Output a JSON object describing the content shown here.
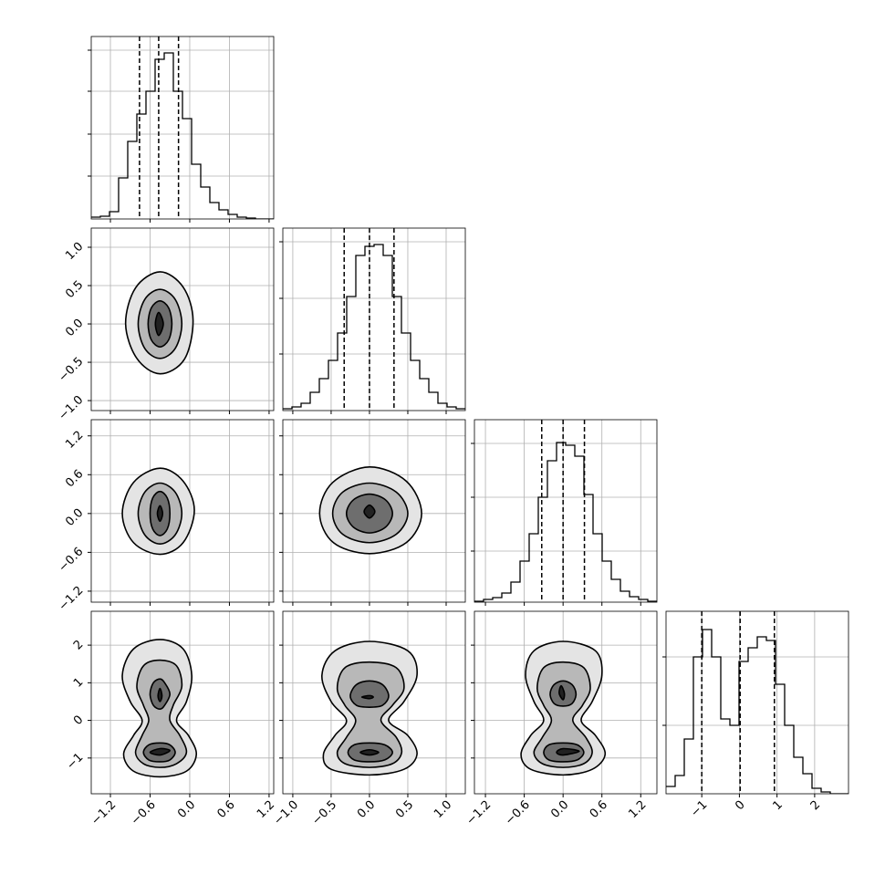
{
  "chart_data": {
    "type": "corner",
    "variables": [
      {
        "xlim": [
          -1.49,
          1.27
        ],
        "xticks": [
          {
            "value": -1.2,
            "label": "−1.2"
          },
          {
            "value": -0.6,
            "label": "−0.6"
          },
          {
            "value": 0,
            "label": "0.0"
          },
          0.6,
          1.2
        ],
        "bins": [
          -1.49,
          -1.352,
          -1.214,
          -1.076,
          -0.938,
          -0.8,
          -0.662,
          -0.524,
          -0.386,
          -0.248,
          -0.11,
          0.028,
          0.166,
          0.304,
          0.442,
          0.58,
          0.718,
          0.856,
          0.994,
          1.132,
          1.27
        ],
        "counts": [
          2,
          3,
          8,
          45,
          85,
          115,
          140,
          175,
          182,
          140,
          110,
          60,
          35,
          18,
          10,
          5,
          2,
          1,
          0,
          0
        ],
        "hist_ylim": [
          0,
          200
        ],
        "hist_yticks": [
          47,
          93,
          140,
          185
        ],
        "quantiles": [
          -0.76,
          -0.47,
          -0.17
        ]
      },
      {
        "xlim": [
          -1.13,
          1.25
        ],
        "xticks": [
          {
            "value": -1.0,
            "label": "−1.0"
          },
          {
            "value": -0.5,
            "label": "−0.5"
          },
          {
            "value": 0,
            "label": "0.0"
          },
          0.5,
          {
            "value": 1.0,
            "label": "1.0"
          }
        ],
        "bins": [
          -1.13,
          -1.011,
          -0.892,
          -0.773,
          -0.654,
          -0.535,
          -0.416,
          -0.297,
          -0.178,
          -0.059,
          0.06,
          0.179,
          0.298,
          0.417,
          0.536,
          0.655,
          0.774,
          0.893,
          1.012,
          1.131,
          1.25
        ],
        "counts": [
          2,
          4,
          8,
          20,
          35,
          55,
          85,
          125,
          170,
          180,
          182,
          170,
          125,
          85,
          55,
          35,
          20,
          8,
          4,
          2
        ],
        "hist_ylim": [
          0,
          200
        ],
        "hist_yticks": [
          62,
          123,
          185
        ],
        "quantiles": [
          -0.33,
          0.0,
          0.32
        ]
      },
      {
        "xlim": [
          -1.37,
          1.45
        ],
        "xticks": [
          {
            "value": -1.2,
            "label": "−1.2"
          },
          {
            "value": -0.6,
            "label": "−0.6"
          },
          {
            "value": 0,
            "label": "0.0"
          },
          0.6,
          1.2
        ],
        "bins": [
          -1.37,
          -1.229,
          -1.088,
          -0.947,
          -0.806,
          -0.665,
          -0.524,
          -0.383,
          -0.242,
          -0.101,
          0.04,
          0.181,
          0.322,
          0.463,
          0.604,
          0.745,
          0.886,
          1.027,
          1.168,
          1.309,
          1.45
        ],
        "counts": [
          1,
          3,
          5,
          10,
          22,
          45,
          75,
          115,
          155,
          175,
          172,
          160,
          118,
          75,
          45,
          25,
          12,
          6,
          3,
          1
        ],
        "hist_ylim": [
          0,
          200
        ],
        "hist_yticks": [
          56,
          115,
          174
        ],
        "quantiles": [
          -0.33,
          0.0,
          0.33
        ]
      },
      {
        "xlim": [
          -1.95,
          2.9
        ],
        "xticks": [
          {
            "value": -1,
            "label": "−1"
          },
          0,
          1,
          2
        ],
        "bins": [
          -1.95,
          -1.7075,
          -1.465,
          -1.2225,
          -0.98,
          -0.7375,
          -0.495,
          -0.2525,
          -0.01,
          0.2325,
          0.475,
          0.7175,
          0.96,
          1.2025,
          1.445,
          1.6875,
          1.93,
          2.1725,
          2.415,
          2.6575,
          2.9
        ],
        "counts": [
          8,
          20,
          60,
          150,
          180,
          150,
          82,
          75,
          145,
          160,
          172,
          168,
          120,
          75,
          40,
          22,
          6,
          2,
          0,
          0
        ],
        "hist_ylim": [
          0,
          200
        ],
        "hist_yticks": [
          75,
          150
        ],
        "quantiles": [
          -1.0,
          0.02,
          0.93
        ]
      }
    ],
    "pairs": [
      {
        "x_var": 0,
        "y_var": 1,
        "contours": [
          {
            "color": "#e4e4e4",
            "x": [
              0.05,
              -0.1,
              -0.45,
              -0.82,
              -0.97,
              -0.8,
              -0.45,
              -0.08
            ],
            "y": [
              0.05,
              0.48,
              0.68,
              0.47,
              0.0,
              -0.45,
              -0.65,
              -0.46
            ]
          },
          {
            "color": "#b8b8b8",
            "x": [
              -0.12,
              -0.22,
              -0.45,
              -0.68,
              -0.78,
              -0.68,
              -0.45,
              -0.22
            ],
            "y": [
              0,
              0.32,
              0.45,
              0.32,
              0,
              -0.32,
              -0.45,
              -0.32
            ]
          },
          {
            "color": "#6e6e6e",
            "x": [
              -0.27,
              -0.32,
              -0.45,
              -0.58,
              -0.63,
              -0.58,
              -0.45,
              -0.32
            ],
            "y": [
              0,
              0.21,
              0.3,
              0.21,
              0,
              -0.21,
              -0.3,
              -0.21
            ]
          },
          {
            "color": "#222222",
            "x": [
              -0.4,
              -0.47,
              -0.52,
              -0.47
            ],
            "y": [
              0,
              0.15,
              0,
              -0.15
            ]
          }
        ]
      },
      {
        "x_var": 0,
        "y_var": 2,
        "contours": [
          {
            "color": "#e4e4e4",
            "x": [
              0.07,
              -0.1,
              -0.45,
              -0.85,
              -1.02,
              -0.85,
              -0.45,
              -0.1
            ],
            "y": [
              0.05,
              0.5,
              0.7,
              0.48,
              0,
              -0.45,
              -0.63,
              -0.45
            ]
          },
          {
            "color": "#b8b8b8",
            "x": [
              -0.12,
              -0.22,
              -0.45,
              -0.68,
              -0.78,
              -0.68,
              -0.45,
              -0.22
            ],
            "y": [
              0,
              0.33,
              0.47,
              0.33,
              0,
              -0.33,
              -0.47,
              -0.33
            ]
          },
          {
            "color": "#6e6e6e",
            "x": [
              -0.3,
              -0.34,
              -0.45,
              -0.56,
              -0.6,
              -0.56,
              -0.45,
              -0.34
            ],
            "y": [
              0,
              0.24,
              0.34,
              0.24,
              0,
              -0.24,
              -0.34,
              -0.24
            ]
          },
          {
            "color": "#222222",
            "x": [
              -0.41,
              -0.45,
              -0.49,
              -0.45
            ],
            "y": [
              0,
              0.12,
              0,
              -0.12
            ]
          }
        ]
      },
      {
        "x_var": 1,
        "y_var": 2,
        "contours": [
          {
            "color": "#e4e4e4",
            "x": [
              0.68,
              0.48,
              0,
              -0.48,
              -0.65,
              -0.47,
              0,
              0.48
            ],
            "y": [
              0,
              0.5,
              0.72,
              0.48,
              0,
              -0.45,
              -0.62,
              -0.45
            ]
          },
          {
            "color": "#b8b8b8",
            "x": [
              0.5,
              0.35,
              0,
              -0.35,
              -0.48,
              -0.35,
              0,
              0.35
            ],
            "y": [
              0,
              0.33,
              0.47,
              0.33,
              0,
              -0.32,
              -0.45,
              -0.32
            ]
          },
          {
            "color": "#6e6e6e",
            "x": [
              0.3,
              0.21,
              0,
              -0.21,
              -0.3,
              -0.21,
              0,
              0.21
            ],
            "y": [
              0,
              0.21,
              0.3,
              0.21,
              0,
              -0.21,
              -0.3,
              -0.21
            ]
          },
          {
            "color": "#222222",
            "x": [
              0.07,
              0.0,
              -0.07,
              0.0
            ],
            "y": [
              0.03,
              0.13,
              0.03,
              -0.07
            ]
          }
        ]
      },
      {
        "x_var": 0,
        "y_var": 3,
        "contours": [
          {
            "color": "#e4e4e4",
            "x": [
              -0.45,
              -0.1,
              0.03,
              -0.05,
              -0.2,
              -0.02,
              0.1,
              -0.05,
              -0.45,
              -0.85,
              -1.0,
              -0.85,
              -0.72,
              -0.9,
              -1.02,
              -0.85
            ],
            "y": [
              2.15,
              1.9,
              1.2,
              0.5,
              0.0,
              -0.4,
              -0.9,
              -1.35,
              -1.5,
              -1.35,
              -0.9,
              -0.4,
              0.0,
              0.5,
              1.2,
              1.9
            ]
          },
          {
            "color": "#b8b8b8",
            "x": [
              -0.45,
              -0.2,
              -0.12,
              -0.25,
              -0.3,
              -0.15,
              -0.05,
              -0.2,
              -0.45,
              -0.7,
              -0.82,
              -0.72,
              -0.62,
              -0.7,
              -0.8,
              -0.7
            ],
            "y": [
              1.6,
              1.45,
              0.9,
              0.4,
              0.0,
              -0.4,
              -0.85,
              -1.15,
              -1.25,
              -1.15,
              -0.85,
              -0.4,
              0.0,
              0.4,
              0.9,
              1.45
            ]
          },
          {
            "color": "#6e6e6e",
            "x": [
              -0.3,
              -0.38,
              -0.45,
              -0.55,
              -0.6,
              -0.55,
              -0.45,
              -0.38
            ],
            "y": [
              0.7,
              1.0,
              1.1,
              1.0,
              0.7,
              0.4,
              0.3,
              0.4
            ]
          },
          {
            "color": "#6e6e6e",
            "x": [
              -0.22,
              -0.3,
              -0.45,
              -0.62,
              -0.7,
              -0.62,
              -0.45,
              -0.3
            ],
            "y": [
              -0.85,
              -0.65,
              -0.6,
              -0.65,
              -0.85,
              -1.05,
              -1.1,
              -1.05
            ]
          },
          {
            "color": "#222222",
            "x": [
              -0.42,
              -0.45,
              -0.48,
              -0.45
            ],
            "y": [
              0.65,
              0.85,
              0.65,
              0.5
            ]
          },
          {
            "color": "#222222",
            "x": [
              -0.3,
              -0.45,
              -0.6,
              -0.45
            ],
            "y": [
              -0.8,
              -0.75,
              -0.85,
              -0.92
            ]
          }
        ]
      },
      {
        "x_var": 1,
        "y_var": 3,
        "contours": [
          {
            "color": "#e4e4e4",
            "x": [
              0.0,
              0.5,
              0.62,
              0.45,
              0.25,
              0.5,
              0.62,
              0.45,
              0.0,
              -0.5,
              -0.6,
              -0.45,
              -0.3,
              -0.5,
              -0.62,
              -0.45
            ],
            "y": [
              2.1,
              1.85,
              1.2,
              0.5,
              0.0,
              -0.4,
              -0.9,
              -1.3,
              -1.45,
              -1.3,
              -0.9,
              -0.4,
              0.0,
              0.5,
              1.2,
              1.85
            ]
          },
          {
            "color": "#b8b8b8",
            "x": [
              0.0,
              0.35,
              0.45,
              0.3,
              0.15,
              0.35,
              0.42,
              0.3,
              0.0,
              -0.32,
              -0.42,
              -0.3,
              -0.18,
              -0.32,
              -0.42,
              -0.32
            ],
            "y": [
              1.55,
              1.4,
              0.85,
              0.4,
              0.0,
              -0.45,
              -0.85,
              -1.15,
              -1.25,
              -1.15,
              -0.85,
              -0.45,
              0.0,
              0.4,
              0.85,
              1.4
            ]
          },
          {
            "color": "#6e6e6e",
            "x": [
              0.25,
              0.17,
              0,
              -0.17,
              -0.25,
              -0.17,
              0,
              0.17
            ],
            "y": [
              0.65,
              0.95,
              1.05,
              0.95,
              0.65,
              0.4,
              0.35,
              0.4
            ]
          },
          {
            "color": "#6e6e6e",
            "x": [
              0.3,
              0.2,
              0,
              -0.2,
              -0.28,
              -0.2,
              0,
              0.2
            ],
            "y": [
              -0.85,
              -0.65,
              -0.6,
              -0.65,
              -0.85,
              -1.05,
              -1.1,
              -1.05
            ]
          },
          {
            "color": "#222222",
            "x": [
              0.05,
              0,
              -0.1,
              0
            ],
            "y": [
              0.62,
              0.66,
              0.62,
              0.58
            ]
          },
          {
            "color": "#222222",
            "x": [
              0.12,
              0,
              -0.12,
              0
            ],
            "y": [
              -0.85,
              -0.78,
              -0.85,
              -0.92
            ]
          }
        ]
      },
      {
        "x_var": 2,
        "y_var": 3,
        "contours": [
          {
            "color": "#e4e4e4",
            "x": [
              0.0,
              0.5,
              0.6,
              0.45,
              0.28,
              0.5,
              0.65,
              0.45,
              0.0,
              -0.5,
              -0.65,
              -0.5,
              -0.3,
              -0.45,
              -0.58,
              -0.45
            ],
            "y": [
              2.1,
              1.85,
              1.2,
              0.5,
              0.0,
              -0.4,
              -0.9,
              -1.3,
              -1.45,
              -1.3,
              -0.9,
              -0.4,
              0.0,
              0.5,
              1.2,
              1.85
            ]
          },
          {
            "color": "#b8b8b8",
            "x": [
              0.0,
              0.32,
              0.42,
              0.3,
              0.15,
              0.35,
              0.45,
              0.32,
              0.0,
              -0.32,
              -0.45,
              -0.32,
              -0.18,
              -0.3,
              -0.4,
              -0.3
            ],
            "y": [
              1.55,
              1.4,
              0.85,
              0.4,
              0.0,
              -0.45,
              -0.85,
              -1.15,
              -1.25,
              -1.15,
              -0.85,
              -0.45,
              0.0,
              0.4,
              0.85,
              1.4
            ]
          },
          {
            "color": "#6e6e6e",
            "x": [
              0.2,
              0.14,
              0,
              -0.14,
              -0.2,
              -0.14,
              0,
              0.14
            ],
            "y": [
              0.7,
              0.95,
              1.05,
              0.95,
              0.7,
              0.45,
              0.38,
              0.45
            ]
          },
          {
            "color": "#6e6e6e",
            "x": [
              0.32,
              0.22,
              0,
              -0.22,
              -0.3,
              -0.22,
              0,
              0.22
            ],
            "y": [
              -0.85,
              -0.65,
              -0.6,
              -0.65,
              -0.85,
              -1.05,
              -1.1,
              -1.05
            ]
          },
          {
            "color": "#222222",
            "x": [
              0.02,
              -0.03,
              -0.06,
              0.0
            ],
            "y": [
              0.72,
              0.92,
              0.72,
              0.55
            ]
          },
          {
            "color": "#222222",
            "x": [
              0.25,
              0,
              -0.1,
              0
            ],
            "y": [
              -0.82,
              -0.75,
              -0.85,
              -0.92
            ]
          }
        ]
      }
    ],
    "grid": true
  }
}
